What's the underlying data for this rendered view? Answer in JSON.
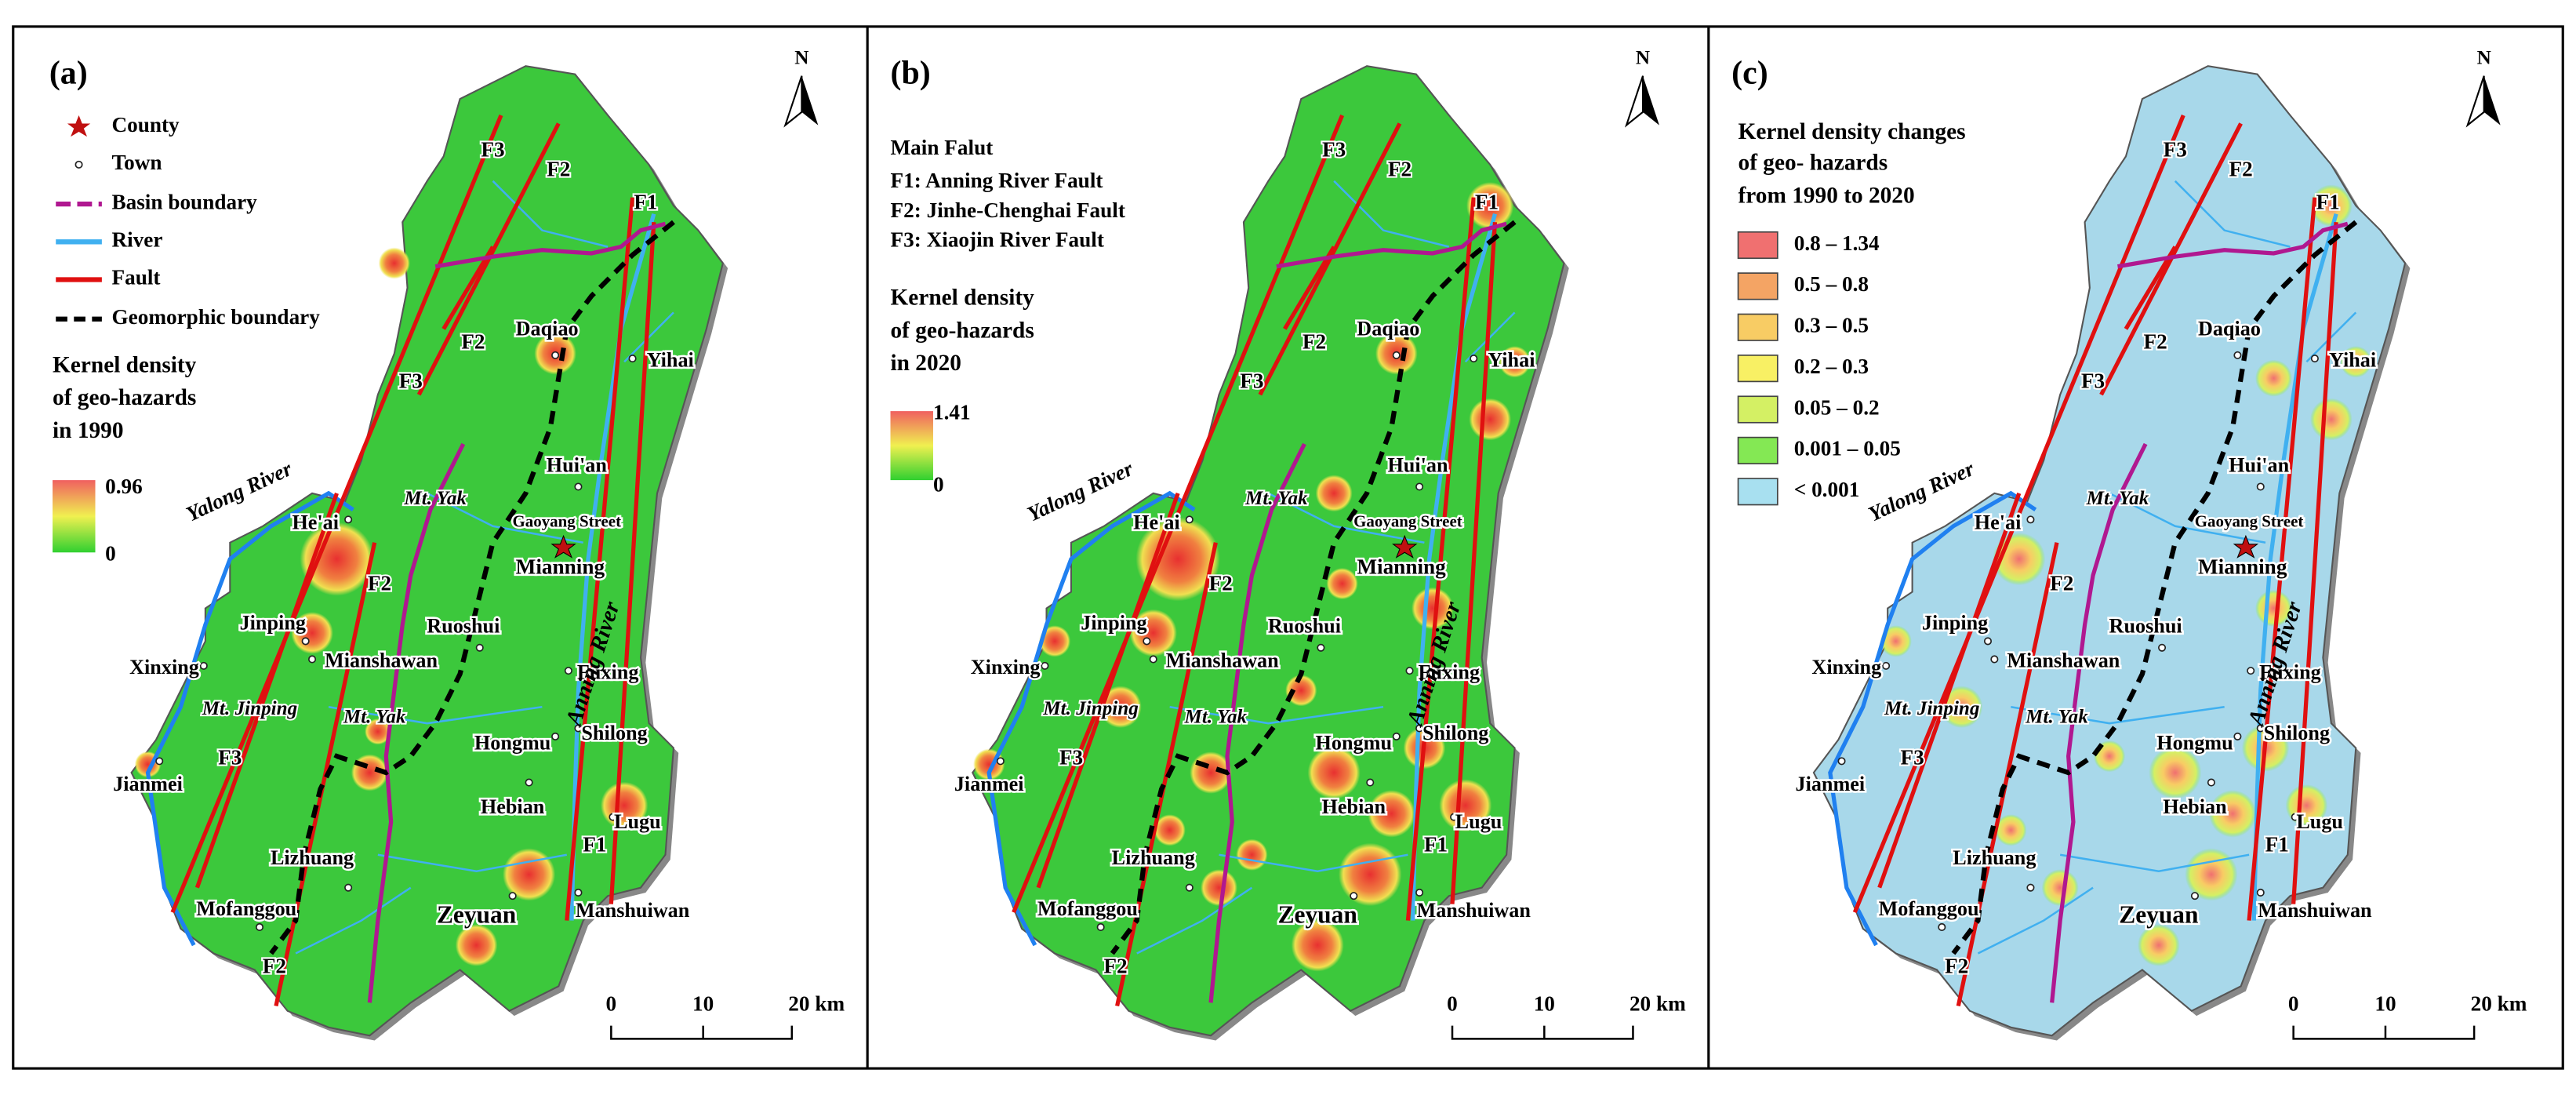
{
  "panels": [
    {
      "label": "(a)",
      "north": "N",
      "legend": {
        "items": [
          "County",
          "Town",
          "Basin boundary",
          "River",
          "Fault",
          "Geomorphic boundary"
        ],
        "title": [
          "Kernel density",
          "of geo-hazards",
          "in 1990"
        ],
        "ramp": {
          "max": 0.96,
          "min": 0
        }
      },
      "scale": [
        0,
        10,
        "20 km"
      ]
    },
    {
      "label": "(b)",
      "north": "N",
      "legend": {
        "faults_title": "Main Falut",
        "faults": [
          "F1: Anning River Fault",
          "F2: Jinhe-Chenghai Fault",
          "F3: Xiaojin River Fault"
        ],
        "title": [
          "Kernel density",
          "of geo-hazards",
          "in 2020"
        ],
        "ramp": {
          "max": 1.41,
          "min": 0
        }
      },
      "scale": [
        0,
        10,
        "20 km"
      ]
    },
    {
      "label": "(c)",
      "north": "N",
      "legend": {
        "title": [
          "Kernel density changes",
          "of geo- hazards",
          "from 1990 to 2020"
        ],
        "classes": [
          {
            "label": "0.8 – 1.34",
            "color": "#f07070"
          },
          {
            "label": "0.5 – 0.8",
            "color": "#f4a464"
          },
          {
            "label": "0.3 – 0.5",
            "color": "#f8cc64"
          },
          {
            "label": "0.2 – 0.3",
            "color": "#f8f064"
          },
          {
            "label": "0.05 – 0.2",
            "color": "#d4f064"
          },
          {
            "label": "0.001 – 0.05",
            "color": "#84e854"
          },
          {
            "label": "< 0.001",
            "color": "#a8e0f0"
          }
        ]
      },
      "scale": [
        0,
        10,
        "20 km"
      ]
    }
  ],
  "map_labels": {
    "county": "Mianning",
    "towns": [
      "Daqiao",
      "Yihai",
      "Hui'an",
      "Gaoyang Street",
      "He'ai",
      "Jinping",
      "Xinxing",
      "Mianshawan",
      "Ruoshui",
      "Fuxing",
      "Shilong",
      "Hongmu",
      "Hebian",
      "Lugu",
      "Jianmei",
      "Lizhuang",
      "Mofanggou",
      "Zeyuan",
      "Manshuiwan"
    ],
    "faults": [
      "F1",
      "F2",
      "F3"
    ],
    "mountains": [
      "Mt. Yak",
      "Mt. Jinping"
    ],
    "rivers": [
      "Yalong River",
      "Anning River"
    ]
  }
}
